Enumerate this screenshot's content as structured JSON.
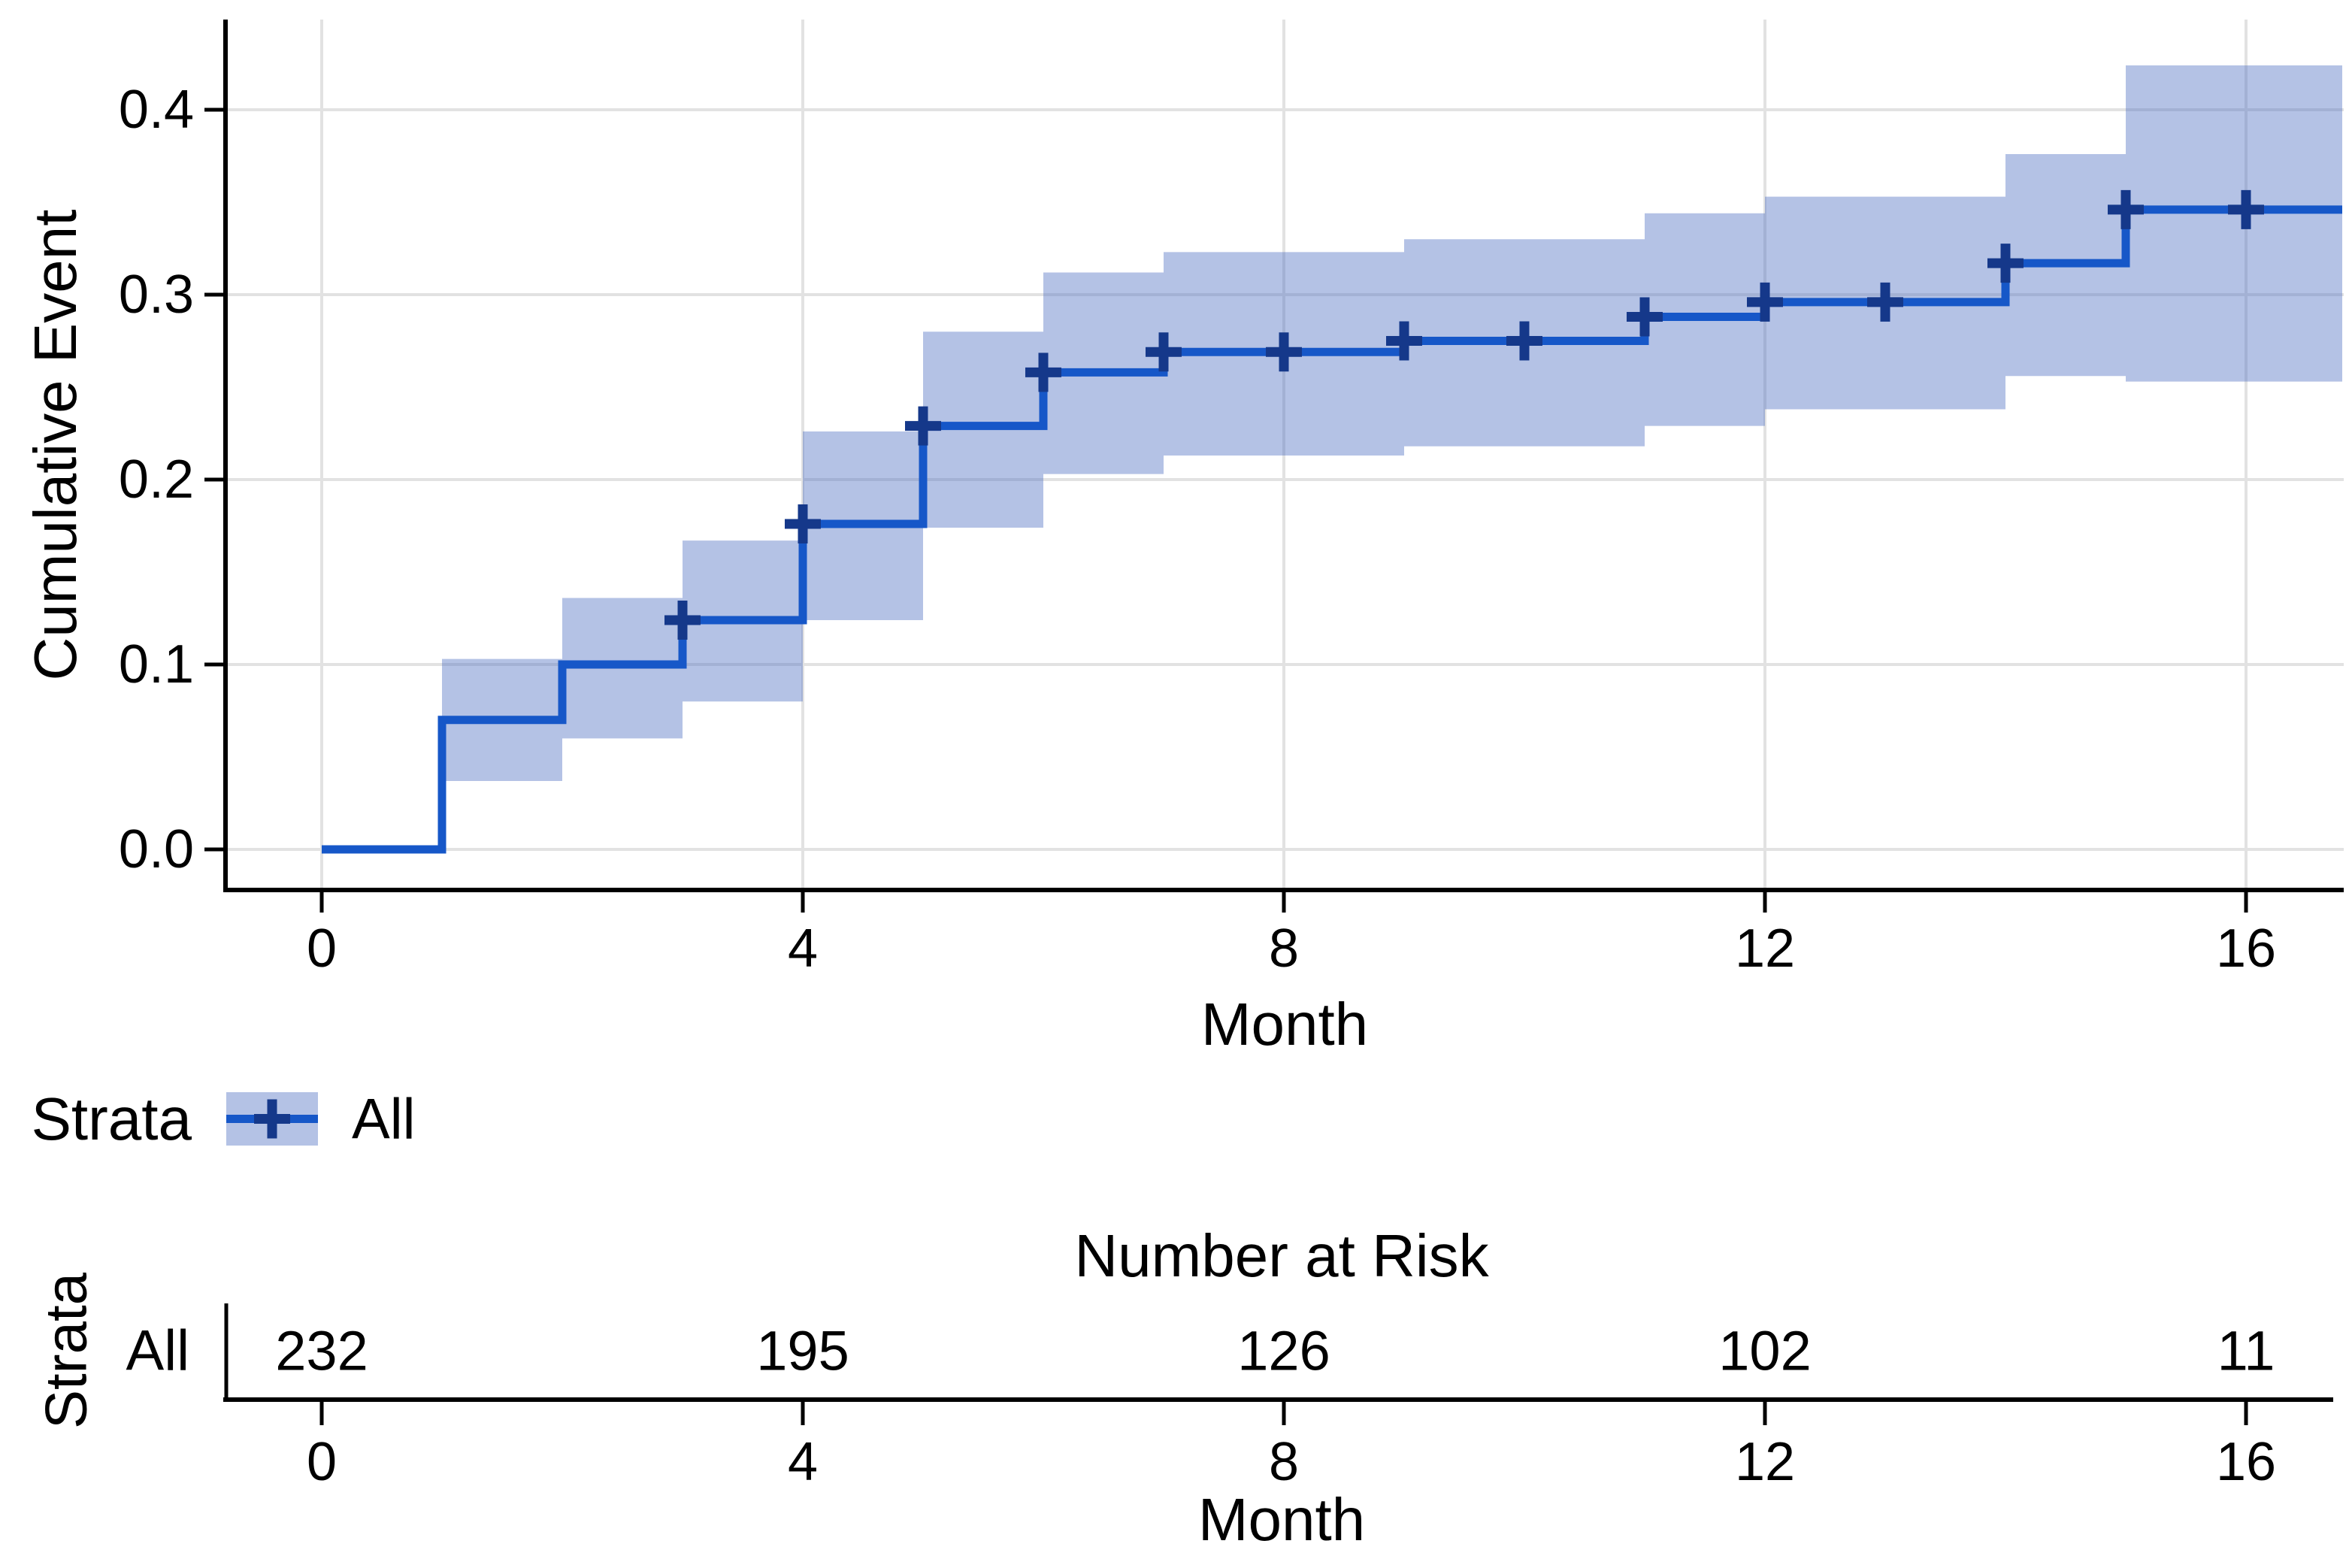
{
  "figure": {
    "background": "#ffffff",
    "colors": {
      "step_line": "#1657c8",
      "censor_mark": "#15388a",
      "confidence_band": "rgba(76,110,194,0.42)",
      "gridline": "#e2e2e2",
      "axis": "#000000",
      "text": "#000000"
    }
  },
  "chart_data": {
    "type": "line",
    "subtype": "kaplan-meier-cumulative-event-step-curve-with-confidence-band",
    "title": "",
    "xlabel": "Month",
    "ylabel": "Cumulative Event",
    "xlim": [
      -0.8,
      16.8
    ],
    "ylim": [
      -0.022,
      0.449
    ],
    "grid": true,
    "x_ticks": [
      {
        "label": "0",
        "value": 0
      },
      {
        "label": "4",
        "value": 4
      },
      {
        "label": "8",
        "value": 8
      },
      {
        "label": "12",
        "value": 12
      },
      {
        "label": "16",
        "value": 16
      }
    ],
    "y_ticks": [
      {
        "label": "0.0",
        "value": 0.0
      },
      {
        "label": "0.1",
        "value": 0.1
      },
      {
        "label": "0.2",
        "value": 0.2
      },
      {
        "label": "0.3",
        "value": 0.3
      },
      {
        "label": "0.4",
        "value": 0.4
      }
    ],
    "legend": {
      "title": "Strata",
      "position": "below-plot-left",
      "items": [
        {
          "label": "All"
        }
      ]
    },
    "series": [
      {
        "name": "All",
        "steps": [
          {
            "from": 0,
            "to": 1,
            "level": 0.0,
            "lower": null,
            "upper": null
          },
          {
            "from": 1,
            "to": 2,
            "level": 0.07,
            "lower": 0.037,
            "upper": 0.103
          },
          {
            "from": 2,
            "to": 3,
            "level": 0.1,
            "lower": 0.06,
            "upper": 0.136
          },
          {
            "from": 3,
            "to": 4,
            "level": 0.124,
            "lower": 0.08,
            "upper": 0.167
          },
          {
            "from": 4,
            "to": 5,
            "level": 0.176,
            "lower": 0.124,
            "upper": 0.226
          },
          {
            "from": 5,
            "to": 6,
            "level": 0.229,
            "lower": 0.174,
            "upper": 0.28
          },
          {
            "from": 6,
            "to": 7,
            "level": 0.258,
            "lower": 0.203,
            "upper": 0.312
          },
          {
            "from": 7,
            "to": 9,
            "level": 0.269,
            "lower": 0.213,
            "upper": 0.323
          },
          {
            "from": 9,
            "to": 11,
            "level": 0.275,
            "lower": 0.218,
            "upper": 0.33
          },
          {
            "from": 11,
            "to": 12,
            "level": 0.288,
            "lower": 0.229,
            "upper": 0.344
          },
          {
            "from": 12,
            "to": 14,
            "level": 0.296,
            "lower": 0.238,
            "upper": 0.353
          },
          {
            "from": 14,
            "to": 15,
            "level": 0.317,
            "lower": 0.256,
            "upper": 0.376
          },
          {
            "from": 15,
            "to": 16.8,
            "level": 0.346,
            "lower": 0.253,
            "upper": 0.424
          }
        ],
        "censor_marks": [
          {
            "t": 3,
            "v": 0.124
          },
          {
            "t": 4,
            "v": 0.176
          },
          {
            "t": 5,
            "v": 0.229
          },
          {
            "t": 6,
            "v": 0.258
          },
          {
            "t": 7,
            "v": 0.269
          },
          {
            "t": 8,
            "v": 0.269
          },
          {
            "t": 9,
            "v": 0.275
          },
          {
            "t": 10,
            "v": 0.275
          },
          {
            "t": 11,
            "v": 0.288
          },
          {
            "t": 12,
            "v": 0.296
          },
          {
            "t": 13,
            "v": 0.296
          },
          {
            "t": 14,
            "v": 0.317
          },
          {
            "t": 15,
            "v": 0.346
          },
          {
            "t": 16,
            "v": 0.346
          }
        ]
      }
    ],
    "risk_table": {
      "title": "Number at Risk",
      "axis_label": "Strata",
      "row_label": "All",
      "months": [
        0,
        4,
        8,
        12,
        16
      ],
      "values": [
        "232",
        "195",
        "126",
        "102",
        "11"
      ],
      "xlabel": "Month",
      "x_ticks": [
        {
          "label": "0",
          "value": 0
        },
        {
          "label": "4",
          "value": 4
        },
        {
          "label": "8",
          "value": 8
        },
        {
          "label": "12",
          "value": 12
        },
        {
          "label": "16",
          "value": 16
        }
      ]
    }
  }
}
